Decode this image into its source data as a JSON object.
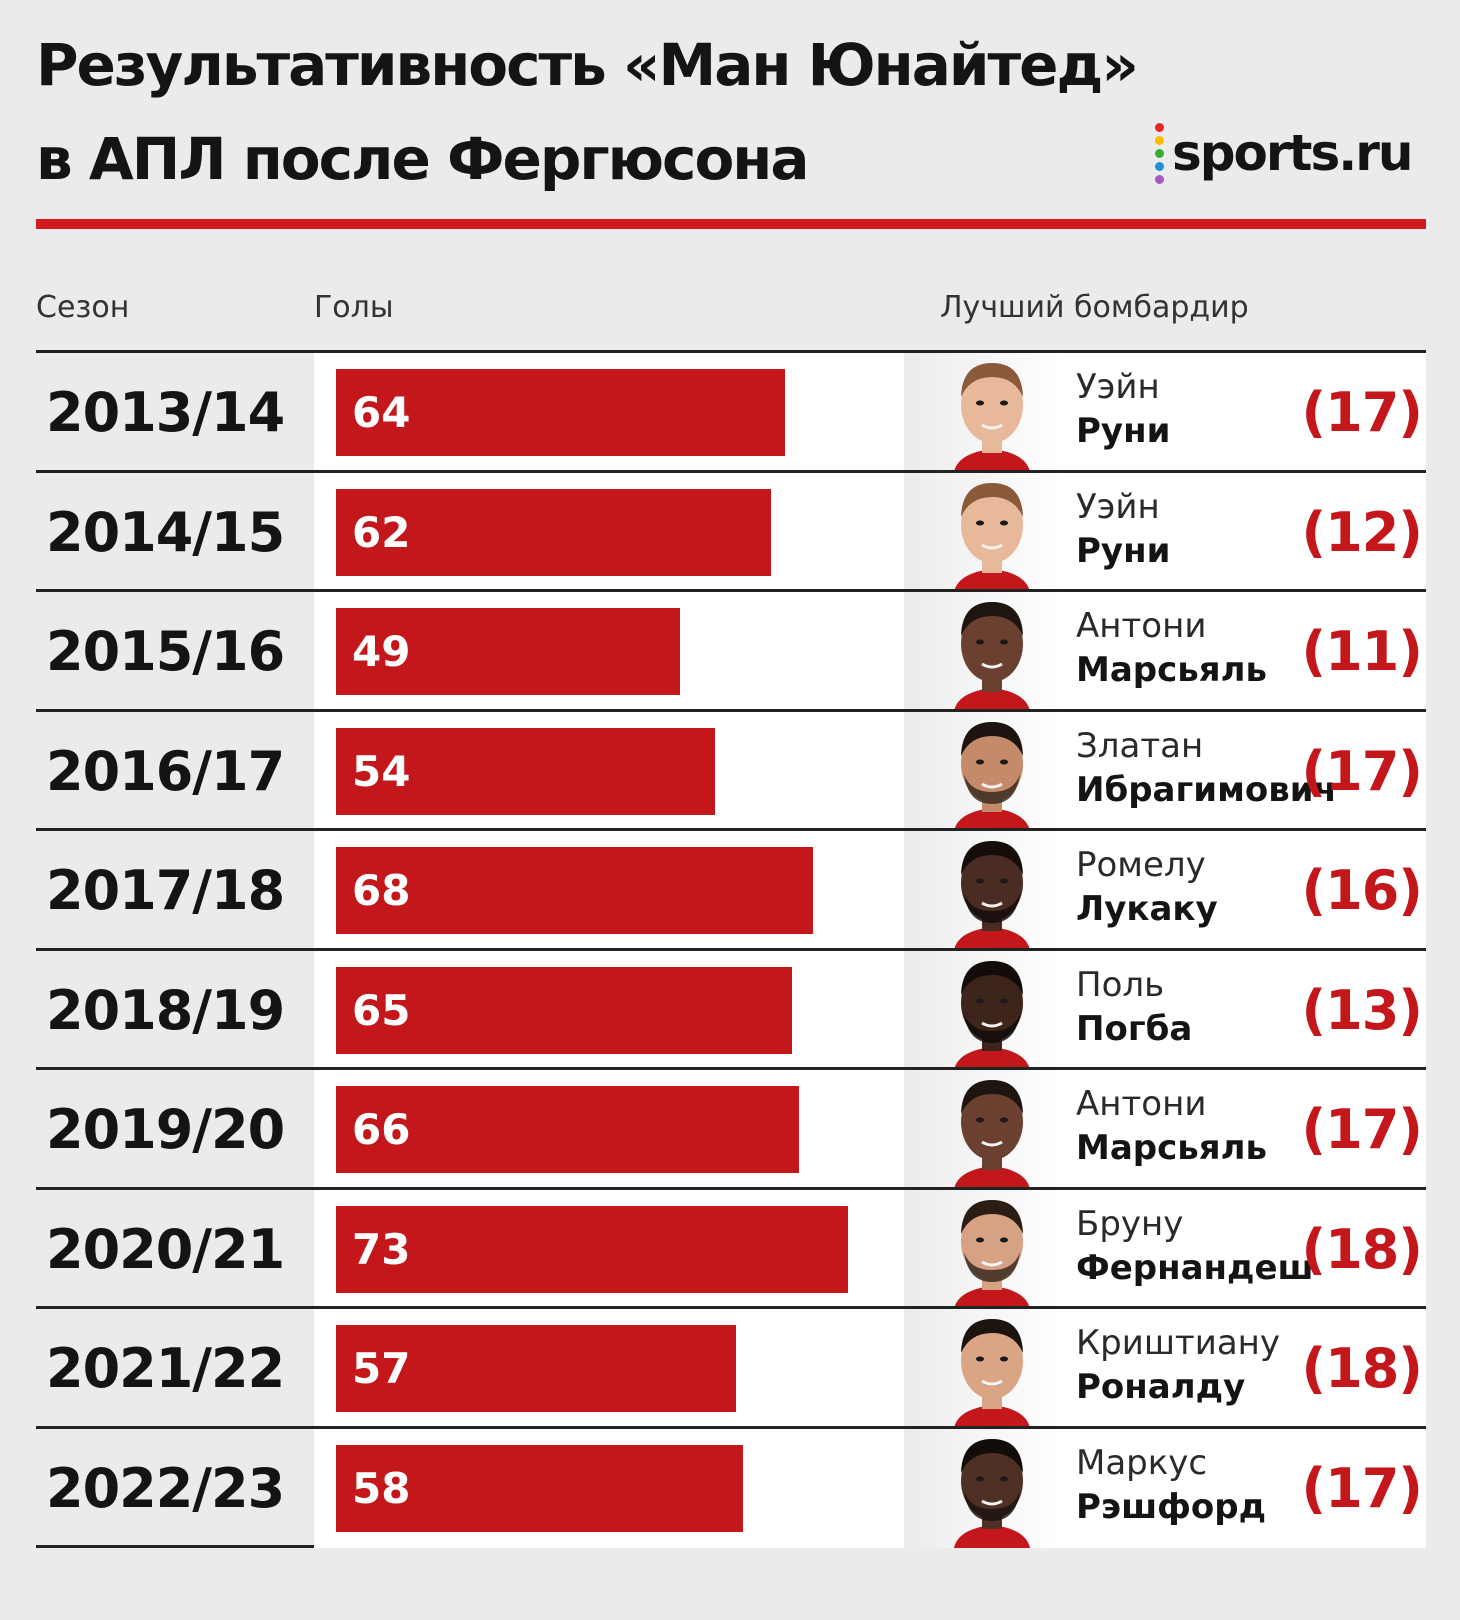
{
  "header": {
    "title_line1": "Результативность «Ман Юнайтед»",
    "title_line2": "в АПЛ после Фергюсона",
    "logo_text": "sports.ru"
  },
  "columns": {
    "season": "Сезон",
    "goals": "Голы",
    "top_scorer": "Лучший бомбардир"
  },
  "colors": {
    "accent": "#d41a1f",
    "bar": "#c3171c",
    "logo_dots": [
      "#e52528",
      "#f6c000",
      "#3aaa35",
      "#1f8fd6",
      "#a45bc2"
    ]
  },
  "chart_data": {
    "type": "bar",
    "orientation": "horizontal",
    "categories": [
      "2013/14",
      "2014/15",
      "2015/16",
      "2016/17",
      "2017/18",
      "2018/19",
      "2019/20",
      "2020/21",
      "2021/22",
      "2022/23"
    ],
    "values": [
      64,
      62,
      49,
      54,
      68,
      65,
      66,
      73,
      57,
      58
    ],
    "xlim": [
      0,
      81
    ],
    "value_labels": [
      "64",
      "62",
      "49",
      "54",
      "68",
      "65",
      "66",
      "73",
      "57",
      "58"
    ],
    "top_scorers": [
      {
        "first": "Уэйн",
        "last": "Руни",
        "goals": "(17)",
        "photo": "rooney-photo"
      },
      {
        "first": "Уэйн",
        "last": "Руни",
        "goals": "(12)",
        "photo": "rooney-photo"
      },
      {
        "first": "Антони",
        "last": "Марсьяль",
        "goals": "(11)",
        "photo": "martial-photo"
      },
      {
        "first": "Златан",
        "last": "Ибрагимович",
        "goals": "(17)",
        "photo": "ibrahimovic-photo"
      },
      {
        "first": "Ромелу",
        "last": "Лукаку",
        "goals": "(16)",
        "photo": "lukaku-photo"
      },
      {
        "first": "Поль",
        "last": "Погба",
        "goals": "(13)",
        "photo": "pogba-photo"
      },
      {
        "first": "Антони",
        "last": "Марсьяль",
        "goals": "(17)",
        "photo": "martial-photo"
      },
      {
        "first": "Бруну",
        "last": "Фернандеш",
        "goals": "(18)",
        "photo": "fernandes-photo"
      },
      {
        "first": "Криштиану",
        "last": "Роналду",
        "goals": "(18)",
        "photo": "ronaldo-photo"
      },
      {
        "first": "Маркус",
        "last": "Рэшфорд",
        "goals": "(17)",
        "photo": "rashford-photo"
      }
    ]
  }
}
